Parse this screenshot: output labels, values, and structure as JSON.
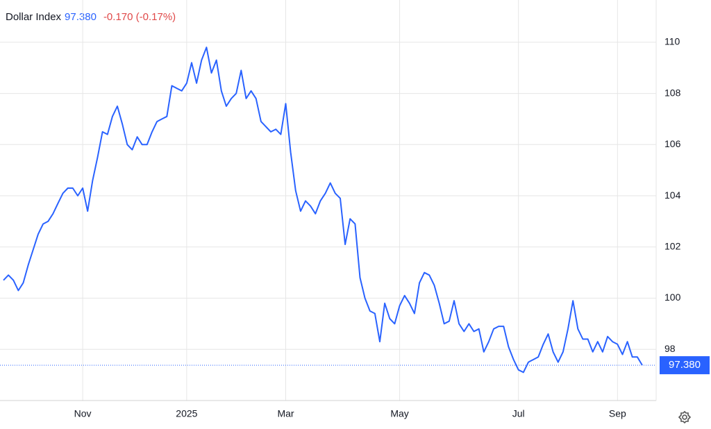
{
  "chart_data": {
    "type": "line",
    "title": "Dollar Index",
    "price": "97.380",
    "change": "-0.170 (-0.17%)",
    "categories": [
      null,
      null,
      null,
      null,
      null,
      null,
      null,
      null,
      null,
      null,
      null,
      null,
      null,
      null,
      null,
      null,
      "Nov",
      null,
      null,
      null,
      null,
      null,
      null,
      null,
      null,
      null,
      null,
      null,
      null,
      null,
      null,
      null,
      null,
      null,
      null,
      null,
      null,
      "2025",
      null,
      null,
      null,
      null,
      null,
      null,
      null,
      null,
      null,
      null,
      null,
      null,
      null,
      null,
      null,
      null,
      null,
      null,
      null,
      "Mar",
      null,
      null,
      null,
      null,
      null,
      null,
      null,
      null,
      null,
      null,
      null,
      null,
      null,
      null,
      null,
      null,
      null,
      null,
      null,
      null,
      null,
      null,
      "May",
      null,
      null,
      null,
      null,
      null,
      null,
      null,
      null,
      null,
      null,
      null,
      null,
      null,
      null,
      null,
      null,
      null,
      null,
      null,
      null,
      null,
      null,
      null,
      "Jul",
      null,
      null,
      null,
      null,
      null,
      null,
      null,
      null,
      null,
      null,
      null,
      null,
      null,
      null,
      null,
      null,
      null,
      null,
      null,
      "Sep",
      null,
      null,
      null,
      null,
      null
    ],
    "series": [
      {
        "name": "Dollar Index",
        "color": "#2962ff",
        "values": [
          100.7,
          100.9,
          100.7,
          100.3,
          100.6,
          101.3,
          101.9,
          102.5,
          102.9,
          103.0,
          103.3,
          103.7,
          104.1,
          104.3,
          104.3,
          104.0,
          104.3,
          103.4,
          104.6,
          105.5,
          106.5,
          106.4,
          107.1,
          107.5,
          106.8,
          106.0,
          105.8,
          106.3,
          106.0,
          106.0,
          106.5,
          106.9,
          107.0,
          107.1,
          108.3,
          108.2,
          108.1,
          108.4,
          109.2,
          108.4,
          109.3,
          109.8,
          108.8,
          109.3,
          108.1,
          107.5,
          107.8,
          108.0,
          108.9,
          107.8,
          108.1,
          107.8,
          106.9,
          106.7,
          106.5,
          106.6,
          106.4,
          107.6,
          105.7,
          104.2,
          103.4,
          103.8,
          103.6,
          103.3,
          103.8,
          104.1,
          104.5,
          104.1,
          103.9,
          102.1,
          103.1,
          102.9,
          100.8,
          100.0,
          99.5,
          99.4,
          98.3,
          99.8,
          99.2,
          99.0,
          99.7,
          100.1,
          99.8,
          99.4,
          100.6,
          101.0,
          100.9,
          100.5,
          99.8,
          99.0,
          99.1,
          99.9,
          99.0,
          98.7,
          99.0,
          98.7,
          98.8,
          97.9,
          98.3,
          98.8,
          98.9,
          98.9,
          98.1,
          97.6,
          97.2,
          97.1,
          97.5,
          97.6,
          97.7,
          98.2,
          98.6,
          97.9,
          97.5,
          97.9,
          98.8,
          99.9,
          98.8,
          98.4,
          98.4,
          97.9,
          98.3,
          97.9,
          98.5,
          98.3,
          98.2,
          97.8,
          98.3,
          97.7,
          97.7,
          97.38
        ]
      }
    ],
    "ylim": [
      96,
      111.65
    ],
    "yticks": [
      98,
      100,
      102,
      104,
      106,
      108,
      110
    ],
    "grid": true
  }
}
